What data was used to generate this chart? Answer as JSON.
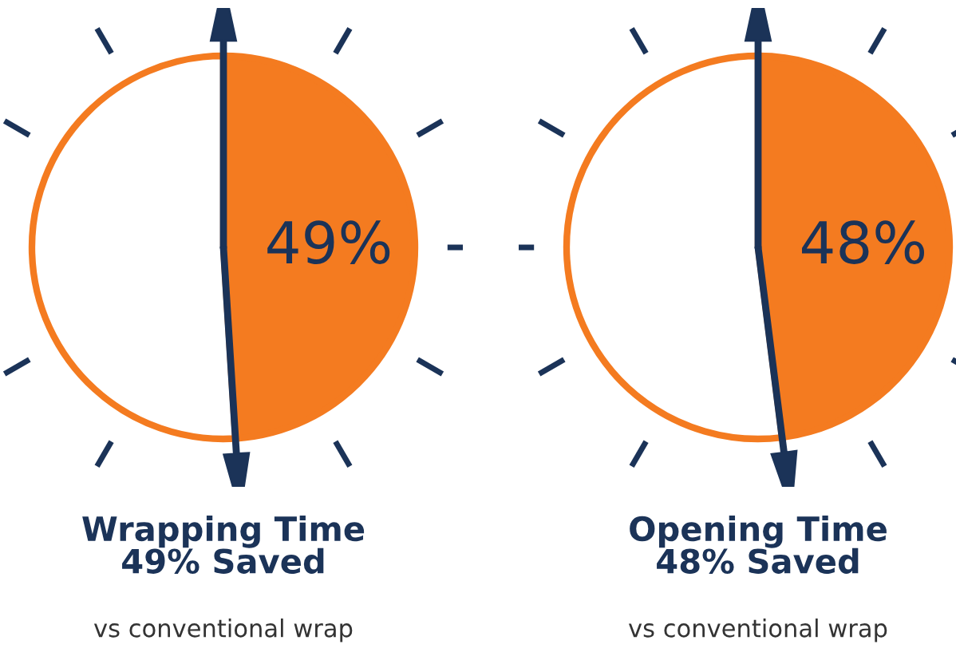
{
  "chart_data": [
    {
      "type": "pie",
      "title": "Wrapping Time\n49% Saved",
      "categories": [
        null,
        null
      ],
      "values": [
        49,
        51
      ],
      "colors": [
        "#f47b20",
        "#ffffff"
      ],
      "value_labels": [
        "49%",
        null
      ],
      "annotations": [
        "vs conventional wrap"
      ]
    },
    {
      "type": "pie",
      "title": "Opening Time\n48% Saved",
      "categories": [
        null,
        null
      ],
      "values": [
        48,
        52
      ],
      "colors": [
        "#f47b20",
        "#ffffff"
      ],
      "value_labels": [
        "48%",
        null
      ],
      "annotations": [
        "vs conventional wrap"
      ]
    }
  ]
}
